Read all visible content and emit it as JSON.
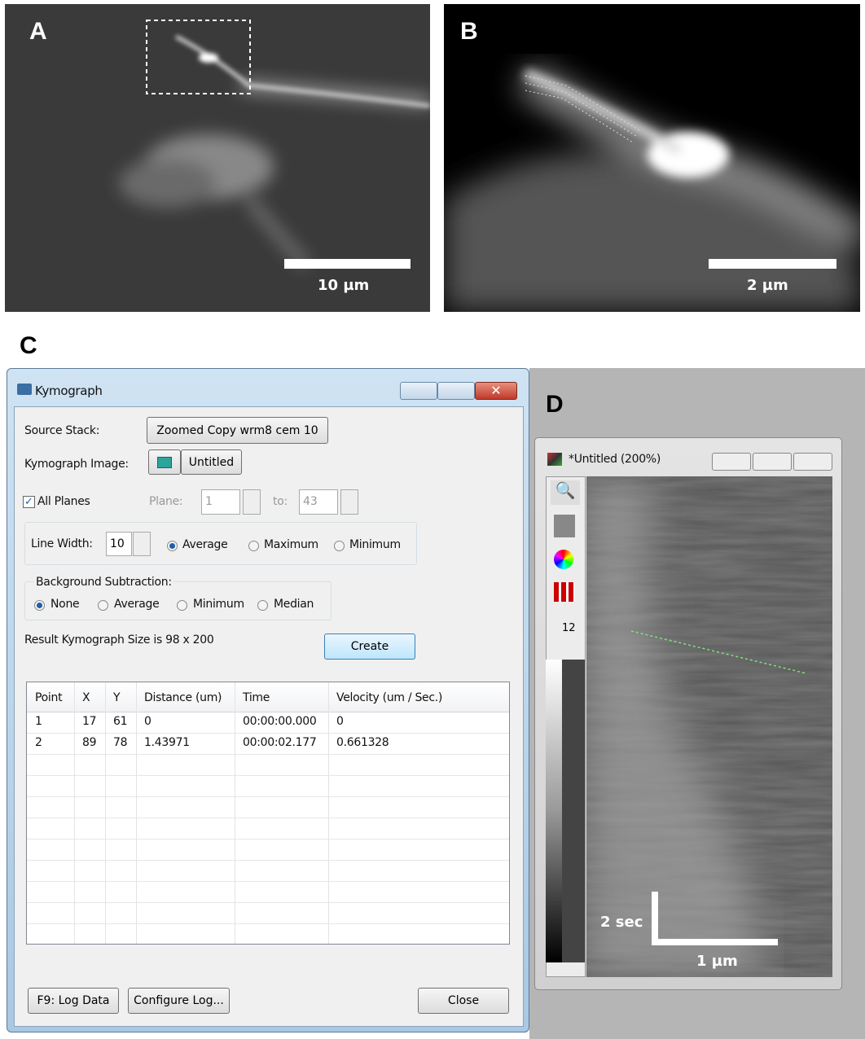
{
  "panels": {
    "a": {
      "label": "A",
      "scale_bar": "10 µm"
    },
    "b": {
      "label": "B",
      "scale_bar": "2 µm"
    },
    "c": {
      "label": "C"
    },
    "d": {
      "label": "D"
    }
  },
  "kymograph_dialog": {
    "title": "Kymograph",
    "source_stack_label": "Source Stack:",
    "source_stack_value": "Zoomed Copy wrm8 cem 10",
    "kymograph_image_label": "Kymograph Image:",
    "kymograph_image_value": "Untitled",
    "all_planes": "All Planes",
    "plane_label": "Plane:",
    "plane_value": "1",
    "to_label": "to:",
    "to_value": "43",
    "line_width_label": "Line Width:",
    "line_width_value": "10",
    "line_options": [
      "Average",
      "Maximum",
      "Minimum"
    ],
    "background_title": "Background Subtraction:",
    "background_options": [
      "None",
      "Average",
      "Minimum",
      "Median"
    ],
    "result_text": "Result Kymograph Size is 98 x 200",
    "create_button": "Create",
    "table": {
      "columns": [
        "Point",
        "X",
        "Y",
        "Distance (um)",
        "Time",
        "Velocity (um / Sec.)"
      ],
      "rows": [
        [
          "1",
          "17",
          "61",
          "0",
          "00:00:00.000",
          "0"
        ],
        [
          "2",
          "89",
          "78",
          "1.43971",
          "00:00:02.177",
          "0.661328"
        ]
      ]
    },
    "buttons": [
      "F9: Log Data",
      "Configure Log...",
      "Close"
    ]
  },
  "image_window": {
    "title": "*Untitled (200%)",
    "toolbar_number": "12",
    "time_bar": "2 sec",
    "distance_bar": "1 µm"
  }
}
